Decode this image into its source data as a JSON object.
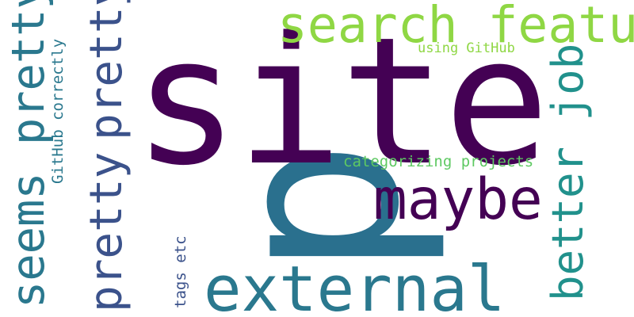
{
  "words": {
    "site": "site",
    "p": "p",
    "search_feature": "search feature",
    "maybe": "maybe",
    "external": "external",
    "seems_pretty": "seems pretty",
    "pretty_awful": "pretty awful",
    "pretty": "pretty",
    "better_job": "better job",
    "using_github": "using GitHub",
    "categorizing_projects": "categorizing projects",
    "github_correctly": "GitHub correctly",
    "tags_etc": "tags etc"
  },
  "colors": {
    "background": "#ffffff",
    "dark_purple": "#440154",
    "indigo": "#3b528b",
    "blue": "#2a788e",
    "teal": "#21918c",
    "green": "#5ec962",
    "lime": "#8fd744"
  }
}
